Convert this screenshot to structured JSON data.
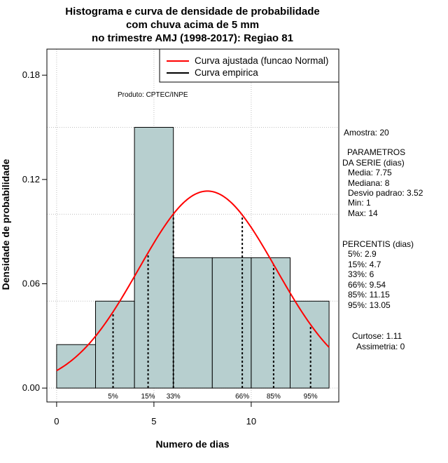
{
  "chart_data": {
    "type": "bar",
    "title": [
      "Histograma e curva de densidade de probabilidade",
      "com chuva acima de 5 mm",
      "no trimestre AMJ (1998-2017): Regiao 81"
    ],
    "xlabel": "Numero de dias",
    "ylabel": "Densidade de probabilidade",
    "xlim": [
      -0.5,
      14.5
    ],
    "ylim": [
      -0.008,
      0.195
    ],
    "x_ticks": [
      0,
      5,
      10
    ],
    "y_ticks": [
      0.0,
      0.06,
      0.12,
      0.18
    ],
    "x_tick_labels": [
      "0",
      "5",
      "10"
    ],
    "y_tick_labels": [
      "0.00",
      "0.06",
      "0.12",
      "0.18"
    ],
    "bins": [
      {
        "start": 0,
        "end": 2,
        "density": 0.025
      },
      {
        "start": 2,
        "end": 4,
        "density": 0.05
      },
      {
        "start": 4,
        "end": 6,
        "density": 0.15
      },
      {
        "start": 6,
        "end": 8,
        "density": 0.075
      },
      {
        "start": 8,
        "end": 10,
        "density": 0.075
      },
      {
        "start": 10,
        "end": 12,
        "density": 0.075
      },
      {
        "start": 12,
        "end": 14,
        "density": 0.05
      }
    ],
    "bar_color": "#b7cfcf",
    "fitted_curve": {
      "name": "Curva ajustada (funcao Normal)",
      "distribution": "normal",
      "mean": 7.75,
      "sd": 3.52,
      "x_range": [
        0,
        14
      ],
      "color": "#ff0000"
    },
    "empirical_curve": {
      "name": "Curva empirica",
      "color": "#000000"
    },
    "percentile_lines": [
      {
        "label": "5%",
        "x": 2.9
      },
      {
        "label": "15%",
        "x": 4.7
      },
      {
        "label": "33%",
        "x": 6
      },
      {
        "label": "66%",
        "x": 9.54
      },
      {
        "label": "85%",
        "x": 11.15
      },
      {
        "label": "95%",
        "x": 13.05
      }
    ],
    "grid": true,
    "grid_x": [
      0,
      5,
      10
    ],
    "grid_y": [
      0.0,
      0.05,
      0.1,
      0.15
    ],
    "legend": {
      "position": "top-right"
    },
    "annotation": "Produto: CPTEC/INPE",
    "side_panel": {
      "amostra": "Amostra: 20",
      "parametros": [
        "PARAMETROS",
        "DA SERIE (dias)",
        "Media: 7.75",
        "Mediana: 8",
        "Desvio padrao: 3.52",
        "Min: 1",
        "Max: 14"
      ],
      "percentis": [
        "PERCENTIS (dias)",
        "5%: 2.9",
        "15%: 4.7",
        "33%: 6",
        "66%: 9.54",
        "85%: 11.15",
        "95%: 13.05"
      ],
      "curtose": "Curtose: 1.11",
      "assimetria": "Assimetria: 0"
    }
  }
}
